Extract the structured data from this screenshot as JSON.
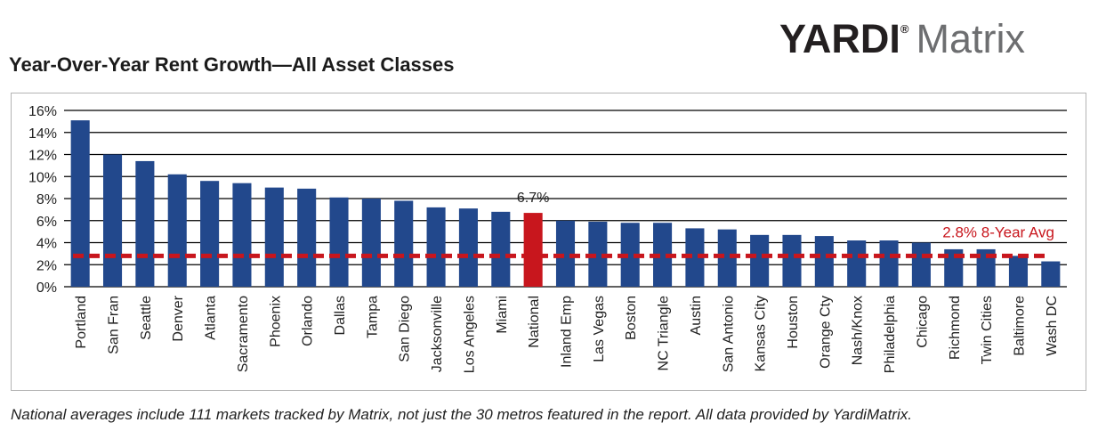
{
  "logo": {
    "brand": "YARDI",
    "registered_mark": "®",
    "product": "Matrix"
  },
  "footnote": "National averages include 111 markets tracked by Matrix, not just the 30 metros featured in the report. All data provided by YardiMatrix.",
  "colors": {
    "bar": "#22488c",
    "highlight": "#c8161d",
    "avg_line": "#c8161d",
    "grid": "#000000"
  },
  "chart_data": {
    "type": "bar",
    "title": "Year-Over-Year Rent Growth—All Asset Classes",
    "xlabel": "",
    "ylabel": "",
    "ylim": [
      0,
      16
    ],
    "y_ticks": [
      0,
      2,
      4,
      6,
      8,
      10,
      12,
      14,
      16
    ],
    "y_tick_labels": [
      "0%",
      "2%",
      "4%",
      "6%",
      "8%",
      "10%",
      "12%",
      "14%",
      "16%"
    ],
    "grid": true,
    "categories": [
      "Portland",
      "San Fran",
      "Seattle",
      "Denver",
      "Atlanta",
      "Sacramento",
      "Phoenix",
      "Orlando",
      "Dallas",
      "Tampa",
      "San Diego",
      "Jacksonville",
      "Los Angeles",
      "Miami",
      "National",
      "Inland Emp",
      "Las Vegas",
      "Boston",
      "NC Triangle",
      "Austin",
      "San Antonio",
      "Kansas City",
      "Houston",
      "Orange Cty",
      "Nash/Knox",
      "Philadelphia",
      "Chicago",
      "Richmond",
      "Twin Cities",
      "Baltimore",
      "Wash DC"
    ],
    "values": [
      15.1,
      12.0,
      11.4,
      10.2,
      9.6,
      9.4,
      9.0,
      8.9,
      8.1,
      8.0,
      7.8,
      7.2,
      7.1,
      6.8,
      6.7,
      6.0,
      5.9,
      5.8,
      5.8,
      5.3,
      5.2,
      4.7,
      4.7,
      4.6,
      4.2,
      4.2,
      4.0,
      3.4,
      3.4,
      2.8,
      2.3
    ],
    "highlight_category": "National",
    "highlight_label": "6.7%",
    "reference_line": {
      "value": 2.8,
      "label": "2.8% 8-Year Avg",
      "style": "dashed"
    }
  }
}
